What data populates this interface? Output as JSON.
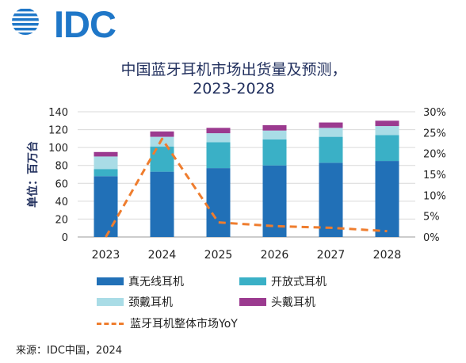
{
  "brand": {
    "logo_text": "IDC"
  },
  "chart_data": {
    "type": "bar",
    "title_lines": [
      "中国蓝牙耳机市场出货量及预测，",
      "2023-2028"
    ],
    "ylabel": "单位：百万台",
    "ylim": [
      0,
      140
    ],
    "y_ticks": [
      0,
      20,
      40,
      60,
      80,
      100,
      120,
      140
    ],
    "y2lim": [
      0,
      30
    ],
    "y2_ticks": [
      "0%",
      "5%",
      "10%",
      "15%",
      "20%",
      "25%",
      "30%"
    ],
    "categories": [
      "2023",
      "2024",
      "2025",
      "2026",
      "2027",
      "2028"
    ],
    "stacked": true,
    "series": [
      {
        "name": "真无线耳机",
        "values": [
          68,
          73,
          77,
          80,
          83,
          85
        ],
        "color": "#2170b7"
      },
      {
        "name": "开放式耳机",
        "values": [
          8,
          28,
          29,
          29,
          29,
          29
        ],
        "color": "#3ab0c6"
      },
      {
        "name": "颈戴耳机",
        "values": [
          14,
          11,
          10,
          10,
          10,
          10
        ],
        "color": "#a9dce6"
      },
      {
        "name": "头戴耳机",
        "values": [
          5,
          6,
          6,
          6,
          6,
          6
        ],
        "color": "#9b3a8f"
      }
    ],
    "line": {
      "name": "蓝牙耳机整体市场YoY",
      "axis": "right",
      "values": [
        0,
        23.5,
        3.5,
        2.6,
        2.2,
        1.4
      ],
      "color": "#ef7d2e"
    },
    "grid": true,
    "legend_position": "bottom"
  },
  "source": "来源：IDC中国，2024"
}
